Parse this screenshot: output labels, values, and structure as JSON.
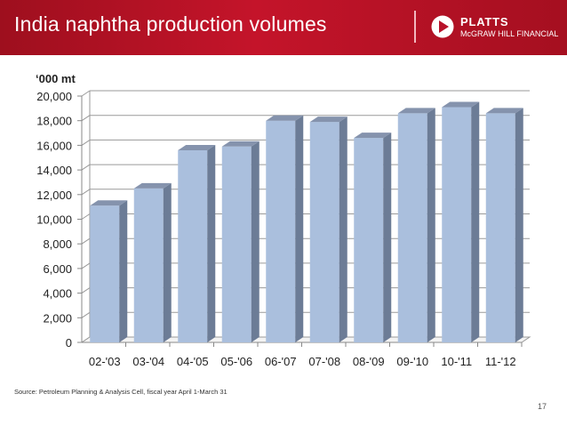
{
  "header": {
    "title": "India naphtha production volumes",
    "logo_name": "PLATTS",
    "logo_sub": "McGRAW HILL FINANCIAL"
  },
  "chart_data": {
    "type": "bar",
    "unit_label": "‘000 mt",
    "categories": [
      "02-'03",
      "03-'04",
      "04-'05",
      "05-'06",
      "06-'07",
      "07-'08",
      "08-'09",
      "09-'10",
      "10-'11",
      "11-'12"
    ],
    "values": [
      11100,
      12500,
      15600,
      15900,
      18000,
      17900,
      16600,
      18600,
      19100,
      18600
    ],
    "yticks": [
      "0",
      "2,000",
      "4,000",
      "6,000",
      "8,000",
      "10,000",
      "12,000",
      "14,000",
      "16,000",
      "18,000",
      "20,000"
    ],
    "ylim": [
      0,
      20000
    ],
    "grid": true,
    "colors": {
      "front": "#aabfdd",
      "side": "#6c7c96",
      "top": "#8593ad"
    }
  },
  "footer": {
    "source": "Source: Petroleum Planning & Analysis Cell, fiscal year April 1-March 31",
    "page_number": "17"
  }
}
